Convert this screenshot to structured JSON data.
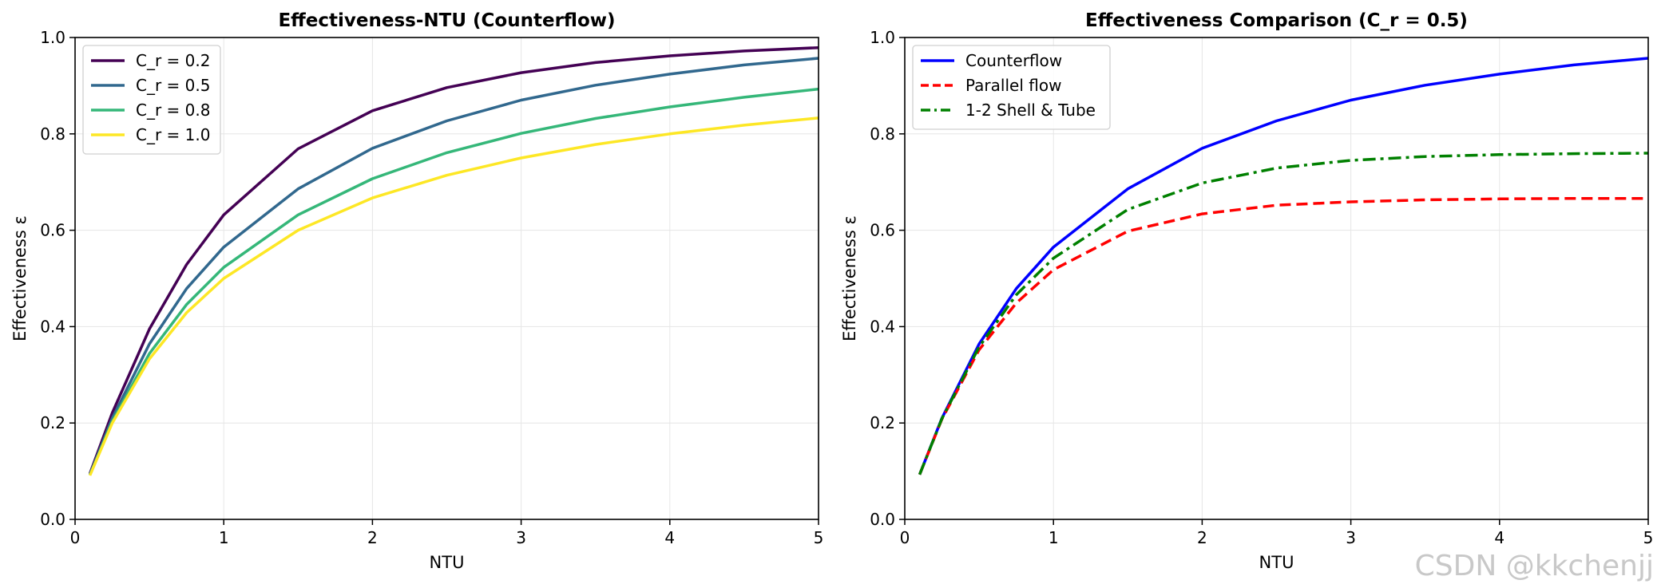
{
  "chart_data": [
    {
      "type": "line",
      "title": "Effectiveness-NTU (Counterflow)",
      "xlabel": "NTU",
      "ylabel": "Effectiveness ε",
      "xlim": [
        0,
        5
      ],
      "ylim": [
        0,
        1.0
      ],
      "xticks": [
        "0",
        "1",
        "2",
        "3",
        "4",
        "5"
      ],
      "yticks": [
        "0.0",
        "0.2",
        "0.4",
        "0.6",
        "0.8",
        "1.0"
      ],
      "grid": true,
      "legend_position": "top-left",
      "x": [
        0.1,
        0.25,
        0.5,
        0.75,
        1.0,
        1.5,
        2.0,
        2.5,
        3.0,
        3.5,
        4.0,
        4.5,
        5.0
      ],
      "series": [
        {
          "name": "C_r = 0.2",
          "color": "#440154",
          "style": "solid",
          "values": [
            0.095,
            0.221,
            0.395,
            0.529,
            0.632,
            0.769,
            0.848,
            0.896,
            0.927,
            0.948,
            0.962,
            0.972,
            0.979
          ]
        },
        {
          "name": "C_r = 0.5",
          "color": "#31688e",
          "style": "solid",
          "values": [
            0.093,
            0.21,
            0.364,
            0.479,
            0.565,
            0.686,
            0.77,
            0.827,
            0.87,
            0.901,
            0.924,
            0.943,
            0.957
          ]
        },
        {
          "name": "C_r = 0.8",
          "color": "#35b779",
          "style": "solid",
          "values": [
            0.092,
            0.203,
            0.344,
            0.446,
            0.523,
            0.632,
            0.707,
            0.761,
            0.801,
            0.832,
            0.856,
            0.876,
            0.893
          ]
        },
        {
          "name": "C_r = 1.0",
          "color": "#fde725",
          "style": "solid",
          "values": [
            0.091,
            0.2,
            0.333,
            0.429,
            0.5,
            0.6,
            0.667,
            0.714,
            0.75,
            0.778,
            0.8,
            0.818,
            0.833
          ]
        }
      ]
    },
    {
      "type": "line",
      "title": "Effectiveness Comparison (C_r = 0.5)",
      "xlabel": "NTU",
      "ylabel": "Effectiveness ε",
      "xlim": [
        0,
        5
      ],
      "ylim": [
        0,
        1.0
      ],
      "xticks": [
        "0",
        "1",
        "2",
        "3",
        "4",
        "5"
      ],
      "yticks": [
        "0.0",
        "0.2",
        "0.4",
        "0.6",
        "0.8",
        "1.0"
      ],
      "grid": true,
      "legend_position": "top-left",
      "x": [
        0.1,
        0.25,
        0.5,
        0.75,
        1.0,
        1.5,
        2.0,
        2.5,
        3.0,
        3.5,
        4.0,
        4.5,
        5.0
      ],
      "series": [
        {
          "name": "Counterflow",
          "color": "#0000ff",
          "style": "solid",
          "values": [
            0.093,
            0.21,
            0.364,
            0.479,
            0.565,
            0.686,
            0.77,
            0.827,
            0.87,
            0.901,
            0.924,
            0.943,
            0.957
          ]
        },
        {
          "name": "Parallel flow",
          "color": "#ff0000",
          "style": "dashed",
          "values": [
            0.093,
            0.208,
            0.352,
            0.449,
            0.518,
            0.598,
            0.634,
            0.652,
            0.659,
            0.663,
            0.665,
            0.666,
            0.666
          ]
        },
        {
          "name": "1-2 Shell & Tube",
          "color": "#008000",
          "style": "dashdot",
          "values": [
            0.093,
            0.209,
            0.358,
            0.466,
            0.542,
            0.643,
            0.698,
            0.729,
            0.745,
            0.753,
            0.757,
            0.759,
            0.76
          ]
        }
      ]
    }
  ],
  "watermark": "CSDN @kkchenjj"
}
